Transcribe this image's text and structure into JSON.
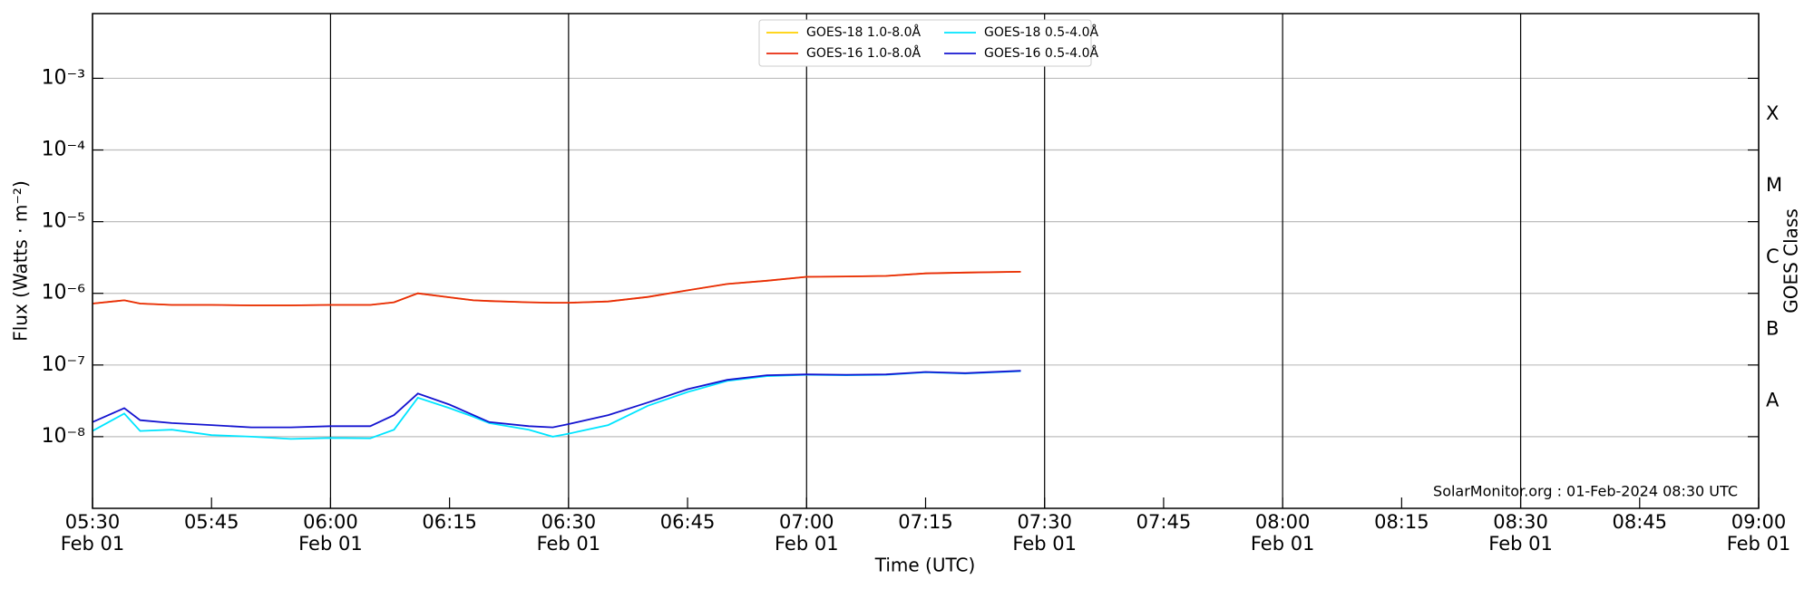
{
  "chart_data": {
    "type": "line",
    "xlabel": "Time (UTC)",
    "ylabel": "Flux (Watts · m⁻²)",
    "y2label": "GOES Class",
    "annotation": "SolarMonitor.org : 01-Feb-2024 08:30 UTC",
    "log_y": true,
    "grid": true,
    "legend": "upper center",
    "x": [
      "05:30",
      "05:34",
      "05:36",
      "05:40",
      "05:45",
      "05:50",
      "05:55",
      "06:00",
      "06:05",
      "06:08",
      "06:11",
      "06:15",
      "06:18",
      "06:20",
      "06:25",
      "06:28",
      "06:30",
      "06:35",
      "06:40",
      "06:45",
      "06:50",
      "06:55",
      "07:00",
      "07:05",
      "07:10",
      "07:15",
      "07:20",
      "07:27"
    ],
    "series": [
      {
        "name": "GOES-18 1.0-8.0Å",
        "color": "#ffd000",
        "values": [
          7.2e-07,
          8e-07,
          7.2e-07,
          6.9e-07,
          6.9e-07,
          6.8e-07,
          6.8e-07,
          6.9e-07,
          6.9e-07,
          7.5e-07,
          1e-06,
          8.8e-07,
          8e-07,
          7.8e-07,
          7.5e-07,
          7.4e-07,
          7.4e-07,
          7.7e-07,
          8.9e-07,
          1.1e-06,
          1.35e-06,
          1.5e-06,
          1.7e-06,
          1.72e-06,
          1.75e-06,
          1.9e-06,
          1.95e-06,
          2e-06
        ]
      },
      {
        "name": "GOES-16 1.0-8.0Å",
        "color": "#e82a0c",
        "values": [
          7.2e-07,
          8e-07,
          7.2e-07,
          6.9e-07,
          6.9e-07,
          6.8e-07,
          6.8e-07,
          6.9e-07,
          6.9e-07,
          7.5e-07,
          1e-06,
          8.8e-07,
          8e-07,
          7.8e-07,
          7.5e-07,
          7.4e-07,
          7.4e-07,
          7.7e-07,
          8.9e-07,
          1.1e-06,
          1.35e-06,
          1.5e-06,
          1.7e-06,
          1.72e-06,
          1.75e-06,
          1.9e-06,
          1.95e-06,
          2e-06
        ]
      },
      {
        "name": "GOES-18 0.5-4.0Å",
        "color": "#00e5ff",
        "values": [
          1.2e-08,
          2.1e-08,
          1.2e-08,
          1.25e-08,
          1.05e-08,
          1e-08,
          9.3e-09,
          9.6e-09,
          9.5e-09,
          1.25e-08,
          3.5e-08,
          2.5e-08,
          1.9e-08,
          1.55e-08,
          1.25e-08,
          1e-08,
          1.1e-08,
          1.45e-08,
          2.7e-08,
          4.2e-08,
          6e-08,
          7e-08,
          7.3e-08,
          7.2e-08,
          7.3e-08,
          7.9e-08,
          7.6e-08,
          8.2e-08
        ]
      },
      {
        "name": "GOES-16 0.5-4.0Å",
        "color": "#1414d0",
        "values": [
          1.6e-08,
          2.5e-08,
          1.7e-08,
          1.55e-08,
          1.45e-08,
          1.35e-08,
          1.35e-08,
          1.4e-08,
          1.4e-08,
          2e-08,
          4e-08,
          2.8e-08,
          2e-08,
          1.6e-08,
          1.4e-08,
          1.35e-08,
          1.5e-08,
          2e-08,
          3e-08,
          4.6e-08,
          6.2e-08,
          7.2e-08,
          7.4e-08,
          7.3e-08,
          7.4e-08,
          8e-08,
          7.7e-08,
          8.3e-08
        ]
      }
    ],
    "xlim": [
      "05:30",
      "09:00"
    ],
    "xticks": [
      "05:30",
      "05:45",
      "06:00",
      "06:15",
      "06:30",
      "06:45",
      "07:00",
      "07:15",
      "07:30",
      "07:45",
      "08:00",
      "08:15",
      "08:30",
      "08:45",
      "09:00"
    ],
    "xtick_dates": [
      "Feb 01",
      null,
      "Feb 01",
      null,
      "Feb 01",
      null,
      "Feb 01",
      null,
      "Feb 01",
      null,
      "Feb 01",
      null,
      "Feb 01",
      null,
      "Feb 01"
    ],
    "ylim": [
      1e-09,
      0.008
    ],
    "yticks": [
      {
        "value": 1e-08,
        "label": "10⁻⁸"
      },
      {
        "value": 1e-07,
        "label": "10⁻⁷"
      },
      {
        "value": 1e-06,
        "label": "10⁻⁶"
      },
      {
        "value": 1e-05,
        "label": "10⁻⁵"
      },
      {
        "value": 0.0001,
        "label": "10⁻⁴"
      },
      {
        "value": 0.001,
        "label": "10⁻³"
      }
    ],
    "y2ticks": [
      {
        "value": 3.16e-08,
        "label": "A"
      },
      {
        "value": 3.16e-07,
        "label": "B"
      },
      {
        "value": 3.16e-06,
        "label": "C"
      },
      {
        "value": 3.16e-05,
        "label": "M"
      },
      {
        "value": 0.000316,
        "label": "X"
      }
    ]
  }
}
